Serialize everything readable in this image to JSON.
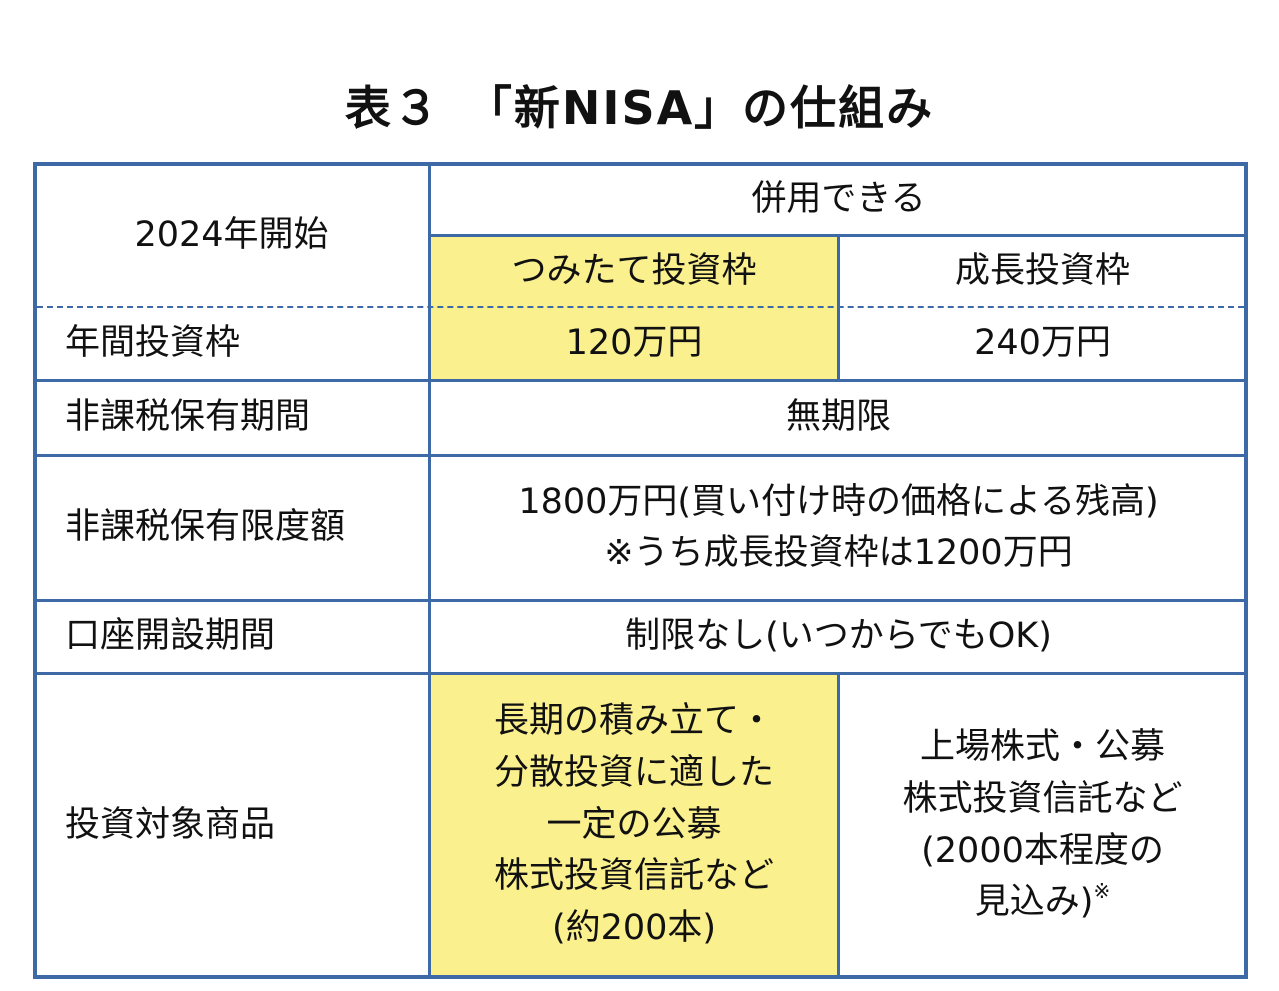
{
  "title": "表３　「新NISA」の仕組み",
  "header": {
    "start": "2024年開始",
    "combined": "併用できる",
    "tsumitate": "つみたて投資枠",
    "growth": "成長投資枠"
  },
  "rows": [
    {
      "label": "年間投資枠",
      "tsumitate": "120万円",
      "growth": "240万円"
    },
    {
      "label": "非課税保有期間",
      "value": "無期限"
    },
    {
      "label": "非課税保有限度額",
      "value_line1": "1800万円(買い付け時の価格による残高)",
      "value_line2": "※うち成長投資枠は1200万円"
    },
    {
      "label": "口座開設期間",
      "value": "制限なし(いつからでもOK)"
    },
    {
      "label": "投資対象商品",
      "tsumitate_lines": [
        "長期の積み立て・",
        "分散投資に適した",
        "一定の公募",
        "株式投資信託など",
        "(約200本)"
      ],
      "growth_lines": [
        "上場株式・公募",
        "株式投資信託など",
        "(2000本程度の",
        "見込み)"
      ],
      "growth_note": "※"
    }
  ],
  "colors": {
    "border": "#3d6aa6",
    "highlight": "#fbf08e"
  }
}
